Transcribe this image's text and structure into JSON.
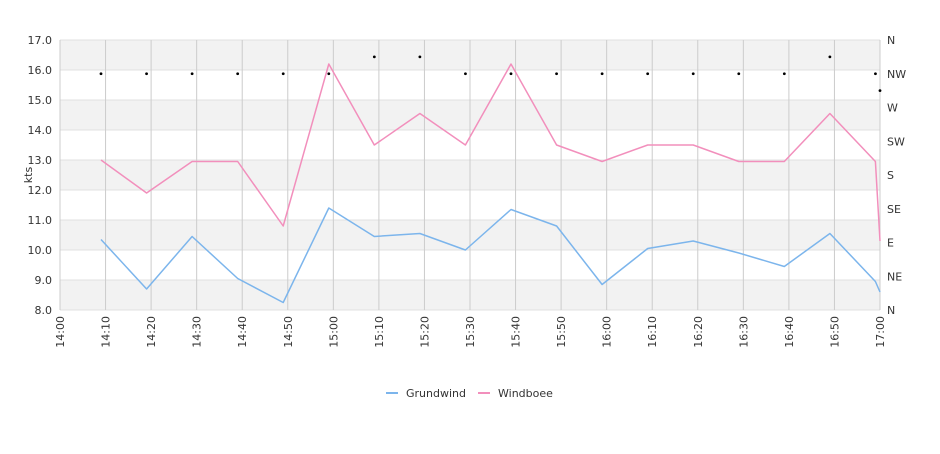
{
  "chart_data": {
    "type": "line",
    "ylabel": "kts",
    "ylim": [
      8,
      17
    ],
    "yticks": [
      "8.0",
      "9.0",
      "10.0",
      "11.0",
      "12.0",
      "13.0",
      "14.0",
      "15.0",
      "16.0",
      "17.0"
    ],
    "x_ticks": [
      "14:00",
      "14:10",
      "14:20",
      "14:30",
      "14:40",
      "14:50",
      "15:00",
      "15:10",
      "15:20",
      "15:30",
      "15:40",
      "15:50",
      "16:00",
      "16:10",
      "16:20",
      "16:30",
      "16:40",
      "16:50",
      "17:00"
    ],
    "xlim": [
      "14:00",
      "17:00"
    ],
    "direction_ticks": [
      "N",
      "NE",
      "E",
      "SE",
      "S",
      "SW",
      "W",
      "NW",
      "N"
    ],
    "grid": true,
    "alternating_bands": true,
    "legend_position": "bottom-center",
    "series": [
      {
        "name": "Grundwind",
        "color": "#7cb5ec",
        "points": [
          [
            "14:09",
            10.35
          ],
          [
            "14:19",
            8.7
          ],
          [
            "14:29",
            10.45
          ],
          [
            "14:39",
            9.05
          ],
          [
            "14:49",
            8.25
          ],
          [
            "14:59",
            11.4
          ],
          [
            "15:09",
            10.45
          ],
          [
            "15:19",
            10.55
          ],
          [
            "15:29",
            10.0
          ],
          [
            "15:39",
            11.35
          ],
          [
            "15:49",
            10.8
          ],
          [
            "15:59",
            8.85
          ],
          [
            "16:09",
            10.05
          ],
          [
            "16:19",
            10.3
          ],
          [
            "16:29",
            9.9
          ],
          [
            "16:39",
            9.45
          ],
          [
            "16:49",
            10.55
          ],
          [
            "16:59",
            8.95
          ],
          [
            "17:00",
            8.6
          ]
        ]
      },
      {
        "name": "Windboee",
        "color": "#f28fbc",
        "points": [
          [
            "14:09",
            13.0
          ],
          [
            "14:19",
            11.9
          ],
          [
            "14:29",
            12.95
          ],
          [
            "14:39",
            12.95
          ],
          [
            "14:49",
            10.8
          ],
          [
            "14:59",
            16.2
          ],
          [
            "15:09",
            13.5
          ],
          [
            "15:19",
            14.55
          ],
          [
            "15:29",
            13.5
          ],
          [
            "15:39",
            16.2
          ],
          [
            "15:49",
            13.5
          ],
          [
            "15:59",
            12.95
          ],
          [
            "16:09",
            13.5
          ],
          [
            "16:19",
            13.5
          ],
          [
            "16:29",
            12.95
          ],
          [
            "16:39",
            12.95
          ],
          [
            "16:49",
            14.55
          ],
          [
            "16:59",
            12.95
          ],
          [
            "17:00",
            10.3
          ]
        ]
      },
      {
        "name": "",
        "kind": "direction-dots",
        "color": "#000000",
        "points": [
          [
            "14:09",
            "NW"
          ],
          [
            "14:19",
            "NW"
          ],
          [
            "14:29",
            "NW"
          ],
          [
            "14:39",
            "NW"
          ],
          [
            "14:49",
            "NW"
          ],
          [
            "14:59",
            "NW"
          ],
          [
            "15:09",
            "NNW"
          ],
          [
            "15:19",
            "NNW"
          ],
          [
            "15:29",
            "NW"
          ],
          [
            "15:39",
            "NW"
          ],
          [
            "15:49",
            "NW"
          ],
          [
            "15:59",
            "NW"
          ],
          [
            "16:09",
            "NW"
          ],
          [
            "16:19",
            "NW"
          ],
          [
            "16:29",
            "NW"
          ],
          [
            "16:39",
            "NW"
          ],
          [
            "16:49",
            "NNW"
          ],
          [
            "16:59",
            "NW"
          ],
          [
            "17:00",
            "WNW"
          ]
        ]
      }
    ]
  }
}
